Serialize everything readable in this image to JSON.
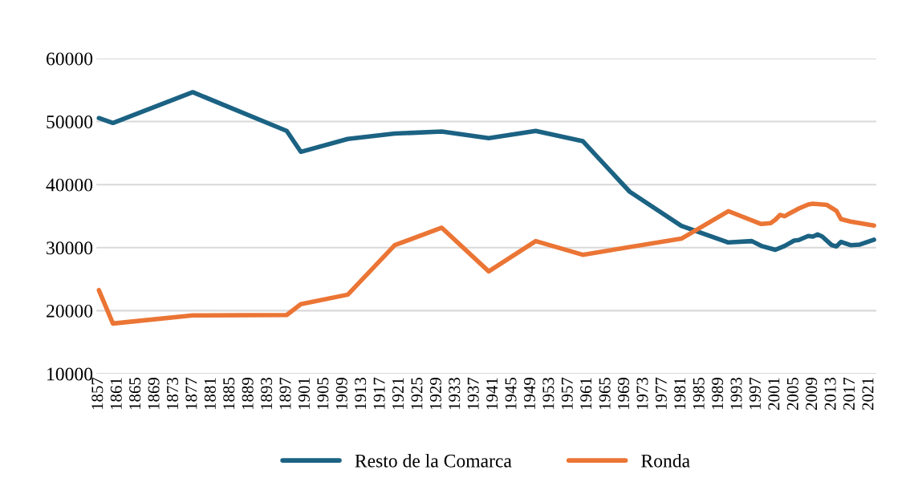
{
  "chart_data": {
    "type": "line",
    "series": [
      {
        "name": "Resto de la Comarca",
        "color": "#1b6283",
        "x": [
          1857,
          1860,
          1877,
          1897,
          1900,
          1910,
          1920,
          1930,
          1940,
          1950,
          1960,
          1970,
          1981,
          1991,
          1996,
          1998,
          2001,
          2003,
          2005,
          2006,
          2008,
          2009,
          2010,
          2011,
          2013,
          2014,
          2015,
          2017,
          2019,
          2022
        ],
        "values": [
          50550,
          49780,
          54660,
          48510,
          45200,
          47240,
          48090,
          48420,
          47370,
          48510,
          46900,
          38880,
          33450,
          30830,
          31040,
          30280,
          29650,
          30280,
          31120,
          31210,
          31850,
          31760,
          32100,
          31760,
          30400,
          30200,
          30920,
          30400,
          30490,
          31250
        ]
      },
      {
        "name": "Ronda",
        "color": "#eb7535",
        "x": [
          1857,
          1860,
          1877,
          1897,
          1900,
          1910,
          1920,
          1930,
          1940,
          1950,
          1960,
          1981,
          1991,
          1998,
          2000,
          2001,
          2002,
          2003,
          2004,
          2006,
          2008,
          2009,
          2012,
          2014,
          2015,
          2017,
          2019,
          2022
        ],
        "values": [
          23270,
          17970,
          19250,
          19330,
          21030,
          22550,
          30400,
          33160,
          26240,
          31040,
          28870,
          31430,
          35790,
          33750,
          33880,
          34430,
          35190,
          34990,
          35420,
          36210,
          36850,
          36970,
          36770,
          35830,
          34520,
          34140,
          33880,
          33500
        ]
      }
    ],
    "xlim": [
      1856.5,
      2022.5
    ],
    "xticks": [
      1857,
      1861,
      1865,
      1869,
      1873,
      1877,
      1881,
      1885,
      1889,
      1893,
      1897,
      1901,
      1905,
      1909,
      1913,
      1917,
      1921,
      1925,
      1929,
      1933,
      1937,
      1941,
      1945,
      1949,
      1953,
      1957,
      1961,
      1965,
      1969,
      1973,
      1977,
      1981,
      1985,
      1989,
      1993,
      1997,
      2001,
      2005,
      2009,
      2013,
      2017,
      2021
    ],
    "ylim": [
      10000,
      60000
    ],
    "yticks": [
      10000,
      20000,
      30000,
      40000,
      50000,
      60000
    ],
    "grid": "y",
    "legend": "bottom",
    "line_style": "solid",
    "marker": "none"
  }
}
